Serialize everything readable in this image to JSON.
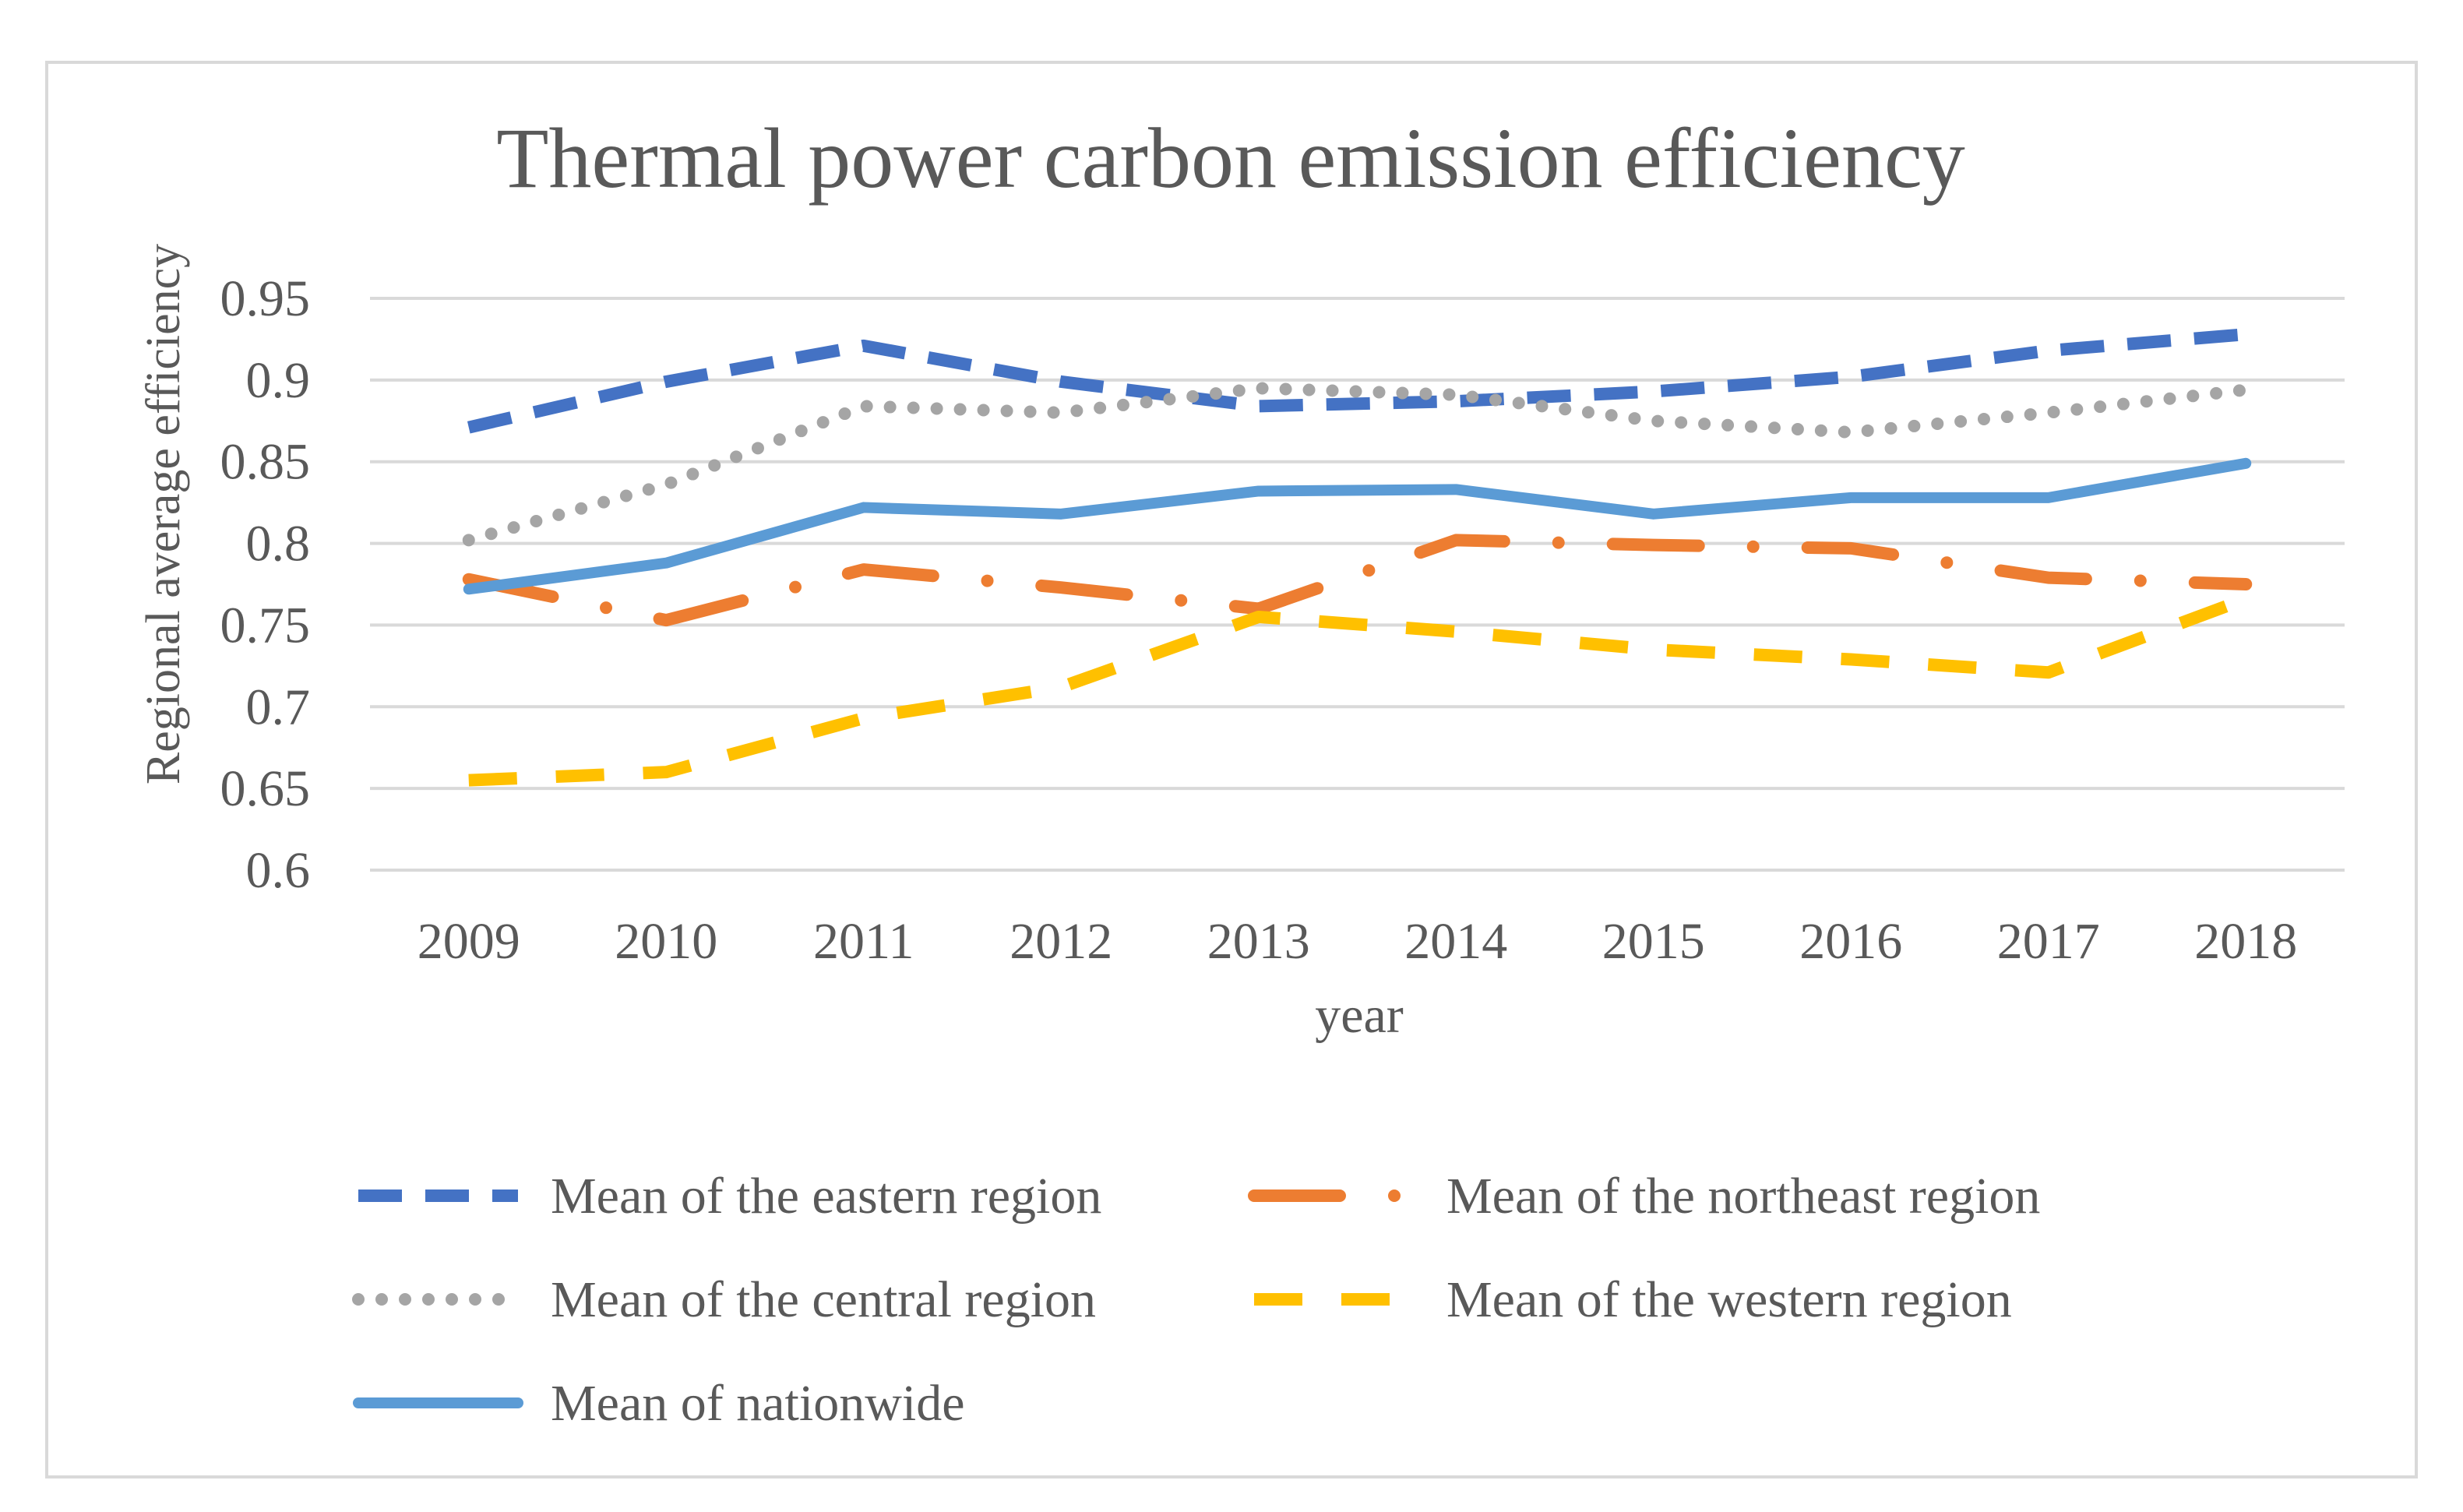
{
  "chart_data": {
    "type": "line",
    "title": "Thermal power carbon emission efficiency",
    "xlabel": "year",
    "ylabel": "Regional average efficiency",
    "categories": [
      "2009",
      "2010",
      "2011",
      "2012",
      "2013",
      "2014",
      "2015",
      "2016",
      "2017",
      "2018"
    ],
    "ylim": [
      0.6,
      0.95
    ],
    "yticks": [
      0.6,
      0.65,
      0.7,
      0.75,
      0.8,
      0.85,
      0.9,
      0.95
    ],
    "ytick_labels": [
      "0.6",
      "0.65",
      "0.7",
      "0.75",
      "0.8",
      "0.85",
      "0.9",
      "0.95"
    ],
    "grid": true,
    "legend_position": "bottom",
    "series": [
      {
        "name": "Mean of the eastern region",
        "color": "#4472c4",
        "style": "dashed",
        "values": [
          0.871,
          0.899,
          0.921,
          0.899,
          0.884,
          0.887,
          0.893,
          0.902,
          0.918,
          0.928
        ]
      },
      {
        "name": "Mean of the northeast region",
        "color": "#ed7d31",
        "style": "dash-dot",
        "values": [
          0.778,
          0.753,
          0.784,
          0.773,
          0.76,
          0.802,
          0.799,
          0.797,
          0.779,
          0.775
        ]
      },
      {
        "name": "Mean of the central region",
        "color": "#a5a5a5",
        "style": "dotted",
        "values": [
          0.802,
          0.836,
          0.884,
          0.88,
          0.895,
          0.891,
          0.875,
          0.868,
          0.88,
          0.894
        ]
      },
      {
        "name": "Mean of the western region",
        "color": "#ffc000",
        "style": "long-dashed",
        "values": [
          0.655,
          0.66,
          0.693,
          0.712,
          0.755,
          0.746,
          0.735,
          0.729,
          0.721,
          0.766
        ]
      },
      {
        "name": "Mean of nationwide",
        "color": "#5b9bd5",
        "style": "solid",
        "values": [
          0.772,
          0.788,
          0.822,
          0.818,
          0.832,
          0.833,
          0.818,
          0.828,
          0.828,
          0.849
        ]
      }
    ]
  }
}
